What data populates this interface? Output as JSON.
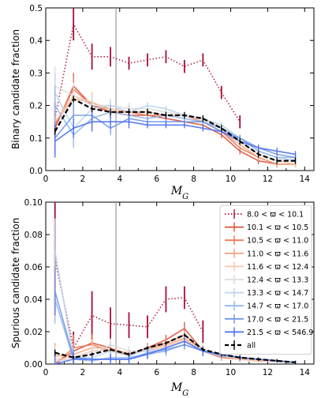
{
  "colors": {
    "vline": "#9a9a9a",
    "series": [
      "#a50f35",
      "#d8503a",
      "#ec7a5a",
      "#f4a582",
      "#f7c8b0",
      "#dcdcdc",
      "#bcd4ee",
      "#92b6e8",
      "#7098ea",
      "#4b6ff0"
    ],
    "all": "#000000"
  },
  "chart_data": [
    {
      "type": "line",
      "xlabel": "M_G",
      "ylabel": "Binary candidate fraction",
      "xlim": [
        0,
        14.5
      ],
      "ylim": [
        0,
        0.5
      ],
      "xticks": [
        "0",
        "2",
        "4",
        "6",
        "8",
        "10",
        "12",
        "14"
      ],
      "yticks": [
        "0.0",
        "0.1",
        "0.2",
        "0.3",
        "0.4",
        "0.5"
      ],
      "vline_x": 3.8,
      "x": [
        0.5,
        1.5,
        2.5,
        3.5,
        4.5,
        5.5,
        6.5,
        7.5,
        8.5,
        9.5,
        10.5,
        11.5,
        12.5,
        13.5
      ],
      "series": [
        {
          "name": "8.0 < ϖ < 10.1",
          "values": [
            0.16,
            0.45,
            0.35,
            0.35,
            0.33,
            0.34,
            0.35,
            0.32,
            0.34,
            0.24,
            0.15,
            null,
            null,
            null
          ],
          "err": [
            0.05,
            0.05,
            0.04,
            0.03,
            0.02,
            0.02,
            0.02,
            0.02,
            0.02,
            0.02,
            0.02,
            null,
            null,
            null
          ]
        },
        {
          "name": "10.1 < ϖ < 10.5",
          "values": [
            0.13,
            0.26,
            0.2,
            0.18,
            0.17,
            0.17,
            0.16,
            0.15,
            0.14,
            0.11,
            0.06,
            0.03,
            0.02,
            0.02
          ],
          "err": [
            0.07,
            0.04,
            0.03,
            0.02,
            0.02,
            0.01,
            0.01,
            0.01,
            0.01,
            0.01,
            0.01,
            0.01,
            0.01,
            0.01
          ]
        },
        {
          "name": "10.5 < ϖ < 11.0",
          "values": [
            0.14,
            0.25,
            0.2,
            0.19,
            0.18,
            0.17,
            0.17,
            0.17,
            0.15,
            0.12,
            0.07,
            0.04,
            0.02,
            0.02
          ],
          "err": [
            0.07,
            0.04,
            0.03,
            0.02,
            0.02,
            0.01,
            0.01,
            0.01,
            0.01,
            0.01,
            0.01,
            0.01,
            0.01,
            0.01
          ]
        },
        {
          "name": "11.0 < ϖ < 11.6",
          "values": [
            0.15,
            0.22,
            0.21,
            0.18,
            0.18,
            0.18,
            0.17,
            0.17,
            0.15,
            0.12,
            0.08,
            0.04,
            0.02,
            0.02
          ],
          "err": [
            0.06,
            0.04,
            0.03,
            0.02,
            0.02,
            0.01,
            0.01,
            0.01,
            0.01,
            0.01,
            0.01,
            0.01,
            0.01,
            0.01
          ]
        },
        {
          "name": "11.6 < ϖ < 12.4",
          "values": [
            0.15,
            0.23,
            0.21,
            0.19,
            0.18,
            0.18,
            0.17,
            0.17,
            0.16,
            0.13,
            0.09,
            0.05,
            0.03,
            0.02
          ],
          "err": [
            0.06,
            0.04,
            0.03,
            0.02,
            0.02,
            0.01,
            0.01,
            0.01,
            0.01,
            0.01,
            0.01,
            0.01,
            0.01,
            0.01
          ]
        },
        {
          "name": "12.4 < ϖ < 13.3",
          "values": [
            0.26,
            0.23,
            0.2,
            0.2,
            0.19,
            0.19,
            0.18,
            0.17,
            0.16,
            0.14,
            0.09,
            0.05,
            0.03,
            0.03
          ],
          "err": [
            0.06,
            0.04,
            0.03,
            0.02,
            0.02,
            0.01,
            0.01,
            0.01,
            0.01,
            0.01,
            0.01,
            0.01,
            0.01,
            0.01
          ]
        },
        {
          "name": "13.3 < ϖ < 14.7",
          "values": [
            0.24,
            0.13,
            0.19,
            0.2,
            0.18,
            0.2,
            0.19,
            0.17,
            0.16,
            0.14,
            0.1,
            0.06,
            0.04,
            0.03
          ],
          "err": [
            0.06,
            0.04,
            0.03,
            0.02,
            0.02,
            0.01,
            0.01,
            0.01,
            0.01,
            0.01,
            0.01,
            0.01,
            0.01,
            0.01
          ]
        },
        {
          "name": "14.7 < ϖ < 17.0",
          "values": [
            0.2,
            0.11,
            0.16,
            0.18,
            0.17,
            0.16,
            0.17,
            0.16,
            0.15,
            0.13,
            0.1,
            0.06,
            0.04,
            0.04
          ],
          "err": [
            0.06,
            0.04,
            0.03,
            0.02,
            0.02,
            0.01,
            0.01,
            0.01,
            0.01,
            0.01,
            0.01,
            0.01,
            0.01,
            0.01
          ]
        },
        {
          "name": "17.0 < ϖ < 21.5",
          "values": [
            0.1,
            0.17,
            0.17,
            0.13,
            0.16,
            0.15,
            0.15,
            0.15,
            0.15,
            0.12,
            0.1,
            0.07,
            0.05,
            0.04
          ],
          "err": [
            0.05,
            0.04,
            0.03,
            0.02,
            0.02,
            0.01,
            0.01,
            0.01,
            0.01,
            0.01,
            0.01,
            0.01,
            0.01,
            0.01
          ]
        },
        {
          "name": "21.5 < ϖ < 546.9",
          "values": [
            0.09,
            0.13,
            0.15,
            0.15,
            0.15,
            0.14,
            0.14,
            0.14,
            0.13,
            0.12,
            0.09,
            0.07,
            0.06,
            0.05
          ],
          "err": [
            0.05,
            0.03,
            0.03,
            0.02,
            0.02,
            0.01,
            0.01,
            0.01,
            0.01,
            0.01,
            0.01,
            0.01,
            0.01,
            0.01
          ]
        },
        {
          "name": "all",
          "values": [
            0.12,
            0.22,
            0.19,
            0.18,
            0.18,
            0.18,
            0.17,
            0.17,
            0.16,
            0.13,
            0.09,
            0.05,
            0.03,
            0.03
          ],
          "err": [
            0.01,
            0.01,
            0.01,
            0.01,
            0.01,
            0.01,
            0.01,
            0.01,
            0.01,
            0.01,
            0.01,
            0.01,
            0.01,
            0.01
          ]
        }
      ]
    },
    {
      "type": "line",
      "xlabel": "M_G",
      "ylabel": "Spurious candidate fraction",
      "xlim": [
        0,
        14.5
      ],
      "ylim": [
        0,
        0.1
      ],
      "xticks": [
        "0",
        "2",
        "4",
        "6",
        "8",
        "10",
        "12",
        "14"
      ],
      "yticks": [
        "0.00",
        "0.02",
        "0.04",
        "0.06",
        "0.08",
        "0.10"
      ],
      "vline_x": 3.8,
      "legend_position": "top-right",
      "x": [
        0.5,
        1.5,
        2.5,
        3.5,
        4.5,
        5.5,
        6.5,
        7.5,
        8.5,
        9.5,
        10.5,
        11.5,
        12.5,
        13.5
      ],
      "series": [
        {
          "name": "8.0 < ϖ < 10.1",
          "values": [
            0.065,
            0.01,
            0.03,
            0.025,
            0.024,
            0.023,
            0.04,
            0.041,
            0.02,
            null,
            null,
            null,
            null,
            null
          ],
          "err": [
            0.035,
            0.01,
            0.015,
            0.01,
            0.008,
            0.007,
            0.008,
            0.007,
            0.007,
            null,
            null,
            null,
            null,
            null
          ]
        },
        {
          "name": "10.1 < ϖ < 10.5",
          "values": [
            0.0,
            0.008,
            0.013,
            0.01,
            0.005,
            0.01,
            0.015,
            0.022,
            0.008,
            0.005,
            0.003,
            0.002,
            0.002,
            0.001
          ],
          "err": [
            0.01,
            0.008,
            0.006,
            0.004,
            0.003,
            0.003,
            0.003,
            0.004,
            0.003,
            0.002,
            0.002,
            0.001,
            0.001,
            0.001
          ]
        },
        {
          "name": "10.5 < ϖ < 11.0",
          "values": [
            0.0,
            0.01,
            0.012,
            0.008,
            0.006,
            0.01,
            0.013,
            0.018,
            0.008,
            0.004,
            0.003,
            0.002,
            0.002,
            0.001
          ],
          "err": [
            0.01,
            0.008,
            0.006,
            0.004,
            0.003,
            0.003,
            0.003,
            0.004,
            0.003,
            0.002,
            0.002,
            0.001,
            0.001,
            0.001
          ]
        },
        {
          "name": "11.0 < ϖ < 11.6",
          "values": [
            0.005,
            0.006,
            0.01,
            0.01,
            0.006,
            0.009,
            0.012,
            0.016,
            0.008,
            0.005,
            0.003,
            0.002,
            0.002,
            0.001
          ],
          "err": [
            0.008,
            0.007,
            0.005,
            0.004,
            0.003,
            0.003,
            0.003,
            0.004,
            0.003,
            0.002,
            0.002,
            0.001,
            0.001,
            0.001
          ]
        },
        {
          "name": "11.6 < ϖ < 12.4",
          "values": [
            0.003,
            0.004,
            0.008,
            0.009,
            0.007,
            0.008,
            0.011,
            0.015,
            0.009,
            0.005,
            0.003,
            0.002,
            0.002,
            0.001
          ],
          "err": [
            0.008,
            0.006,
            0.005,
            0.004,
            0.003,
            0.003,
            0.003,
            0.004,
            0.003,
            0.002,
            0.002,
            0.001,
            0.001,
            0.001
          ]
        },
        {
          "name": "12.4 < ϖ < 13.3",
          "values": [
            0.002,
            0.003,
            0.006,
            0.012,
            0.008,
            0.008,
            0.01,
            0.014,
            0.009,
            0.006,
            0.004,
            0.003,
            0.002,
            0.001
          ],
          "err": [
            0.008,
            0.006,
            0.005,
            0.004,
            0.003,
            0.003,
            0.003,
            0.004,
            0.003,
            0.002,
            0.002,
            0.001,
            0.001,
            0.001
          ]
        },
        {
          "name": "13.3 < ϖ < 14.7",
          "values": [
            0.07,
            0.004,
            0.004,
            0.008,
            0.005,
            0.009,
            0.008,
            0.012,
            0.008,
            0.006,
            0.004,
            0.003,
            0.002,
            0.001
          ],
          "err": [
            0.02,
            0.006,
            0.004,
            0.004,
            0.003,
            0.003,
            0.003,
            0.003,
            0.003,
            0.002,
            0.002,
            0.001,
            0.001,
            0.001
          ]
        },
        {
          "name": "14.7 < ϖ < 17.0",
          "values": [
            0.04,
            0.003,
            0.002,
            0.004,
            0.004,
            0.006,
            0.008,
            0.012,
            0.008,
            0.005,
            0.004,
            0.003,
            0.002,
            0.001
          ],
          "err": [
            0.015,
            0.005,
            0.004,
            0.003,
            0.003,
            0.003,
            0.003,
            0.003,
            0.003,
            0.002,
            0.002,
            0.001,
            0.001,
            0.001
          ]
        },
        {
          "name": "17.0 < ϖ < 21.5",
          "values": [
            0.045,
            0.004,
            0.003,
            0.003,
            0.003,
            0.007,
            0.009,
            0.012,
            0.008,
            0.006,
            0.004,
            0.003,
            0.002,
            0.001
          ],
          "err": [
            0.015,
            0.005,
            0.004,
            0.003,
            0.003,
            0.003,
            0.003,
            0.003,
            0.003,
            0.002,
            0.002,
            0.001,
            0.001,
            0.001
          ]
        },
        {
          "name": "21.5 < ϖ < 546.9",
          "values": [
            0.0,
            0.003,
            0.003,
            0.003,
            0.003,
            0.006,
            0.01,
            0.014,
            0.008,
            0.006,
            0.004,
            0.003,
            0.002,
            0.001
          ],
          "err": [
            0.008,
            0.004,
            0.003,
            0.003,
            0.003,
            0.003,
            0.003,
            0.003,
            0.003,
            0.002,
            0.002,
            0.001,
            0.001,
            0.001
          ]
        },
        {
          "name": "all",
          "values": [
            0.007,
            0.004,
            0.006,
            0.009,
            0.006,
            0.01,
            0.013,
            0.018,
            0.009,
            0.006,
            0.004,
            0.003,
            0.002,
            0.001
          ],
          "err": [
            0.002,
            0.001,
            0.001,
            0.001,
            0.001,
            0.001,
            0.001,
            0.001,
            0.001,
            0.001,
            0.001,
            0.001,
            0.001,
            0.001
          ]
        }
      ]
    }
  ]
}
